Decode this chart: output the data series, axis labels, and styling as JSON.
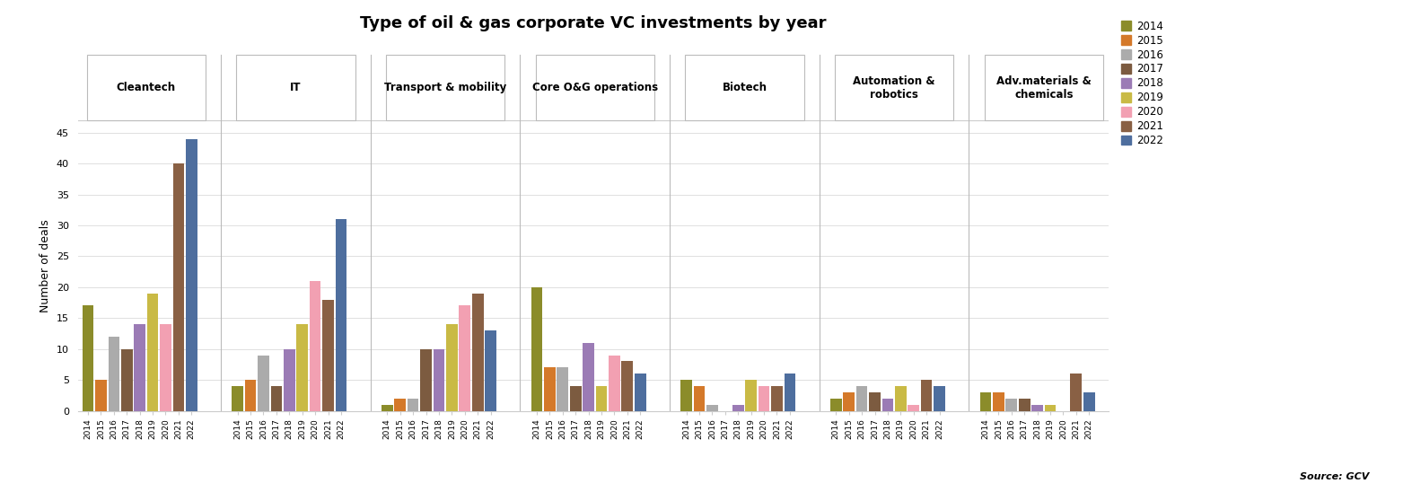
{
  "title": "Type of oil & gas corporate VC investments by year",
  "ylabel": "Number of deals",
  "source": "Source: GCV",
  "categories": [
    "Cleantech",
    "IT",
    "Transport & mobility",
    "Core O&G operations",
    "Biotech",
    "Automation &\nrobotics",
    "Adv.materials &\nchemicals"
  ],
  "cat_labels": [
    "Cleantech",
    "IT",
    "Transport & mobility",
    "Core O&G operations",
    "Biotech",
    "Automation &\nrobotics",
    "Adv.materials &\nchemicals"
  ],
  "years": [
    "2014",
    "2015",
    "2016",
    "2017",
    "2018",
    "2019",
    "2020",
    "2021",
    "2022"
  ],
  "year_colors": {
    "2014": "#8B8C2A",
    "2015": "#D4792A",
    "2016": "#ABABAB",
    "2017": "#7C5B40",
    "2018": "#9B7BB5",
    "2019": "#C9BA45",
    "2020": "#F2A0B2",
    "2021": "#896044",
    "2022": "#4E6E9E"
  },
  "data": {
    "Cleantech": [
      17,
      5,
      12,
      10,
      14,
      19,
      14,
      40,
      44
    ],
    "IT": [
      4,
      5,
      9,
      4,
      10,
      14,
      21,
      18,
      31
    ],
    "Transport & mobility": [
      1,
      2,
      2,
      10,
      10,
      14,
      17,
      19,
      13
    ],
    "Core O&G operations": [
      20,
      7,
      7,
      4,
      11,
      4,
      9,
      8,
      6
    ],
    "Biotech": [
      5,
      4,
      1,
      0,
      1,
      5,
      4,
      4,
      6
    ],
    "Automation &\nrobotics": [
      2,
      3,
      4,
      3,
      2,
      4,
      1,
      5,
      4
    ],
    "Adv.materials &\nchemicals": [
      3,
      3,
      2,
      2,
      1,
      1,
      0,
      6,
      3
    ]
  },
  "ylim": [
    0,
    47
  ],
  "yticks": [
    0,
    5,
    10,
    15,
    20,
    25,
    30,
    35,
    40,
    45
  ],
  "background_color": "#ffffff",
  "grid_color": "#e0e0e0"
}
